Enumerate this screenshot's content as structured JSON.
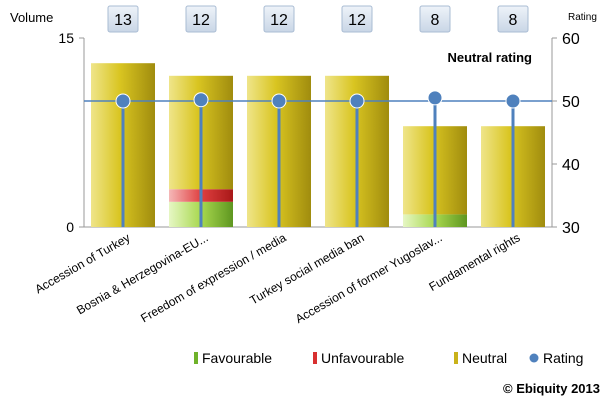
{
  "chart_data": {
    "type": "bar",
    "title": "",
    "annotation": "Neutral rating",
    "left_axis_label": "Volume",
    "right_axis_label": "Rating",
    "ylim_left": [
      0,
      15
    ],
    "yticks_left": [
      "0",
      "15"
    ],
    "ylim_right": [
      30,
      60
    ],
    "yticks_right": [
      "30",
      "40",
      "50",
      "60"
    ],
    "reference_rating": 50,
    "categories": [
      "Accession of Turkey",
      "Bosnia & Herzegovina-EU...",
      "Freedom of expression / media",
      "Turkey social media ban",
      "Accession of former Yugoslav...",
      "Fundamental rights"
    ],
    "volume_labels": [
      "13",
      "12",
      "12",
      "12",
      "8",
      "8"
    ],
    "series": [
      {
        "name": "Favourable",
        "color": "#8fc53a",
        "values": [
          0,
          2,
          0,
          0,
          1,
          0
        ]
      },
      {
        "name": "Unfavourable",
        "color": "#d83030",
        "values": [
          0,
          1,
          0,
          0,
          0,
          0
        ]
      },
      {
        "name": "Neutral",
        "color": "#d6c21c",
        "values": [
          13,
          9,
          12,
          12,
          7,
          8
        ]
      }
    ],
    "rating": {
      "name": "Rating",
      "color": "#4f81bd",
      "values": [
        50,
        50.2,
        50,
        50,
        50.5,
        50
      ]
    },
    "legend": [
      "Favourable",
      "Unfavourable",
      "Neutral",
      "Rating"
    ],
    "legend_position": "bottom",
    "grid": false
  },
  "footer": {
    "copyright": "© Ebiquity  2013"
  }
}
